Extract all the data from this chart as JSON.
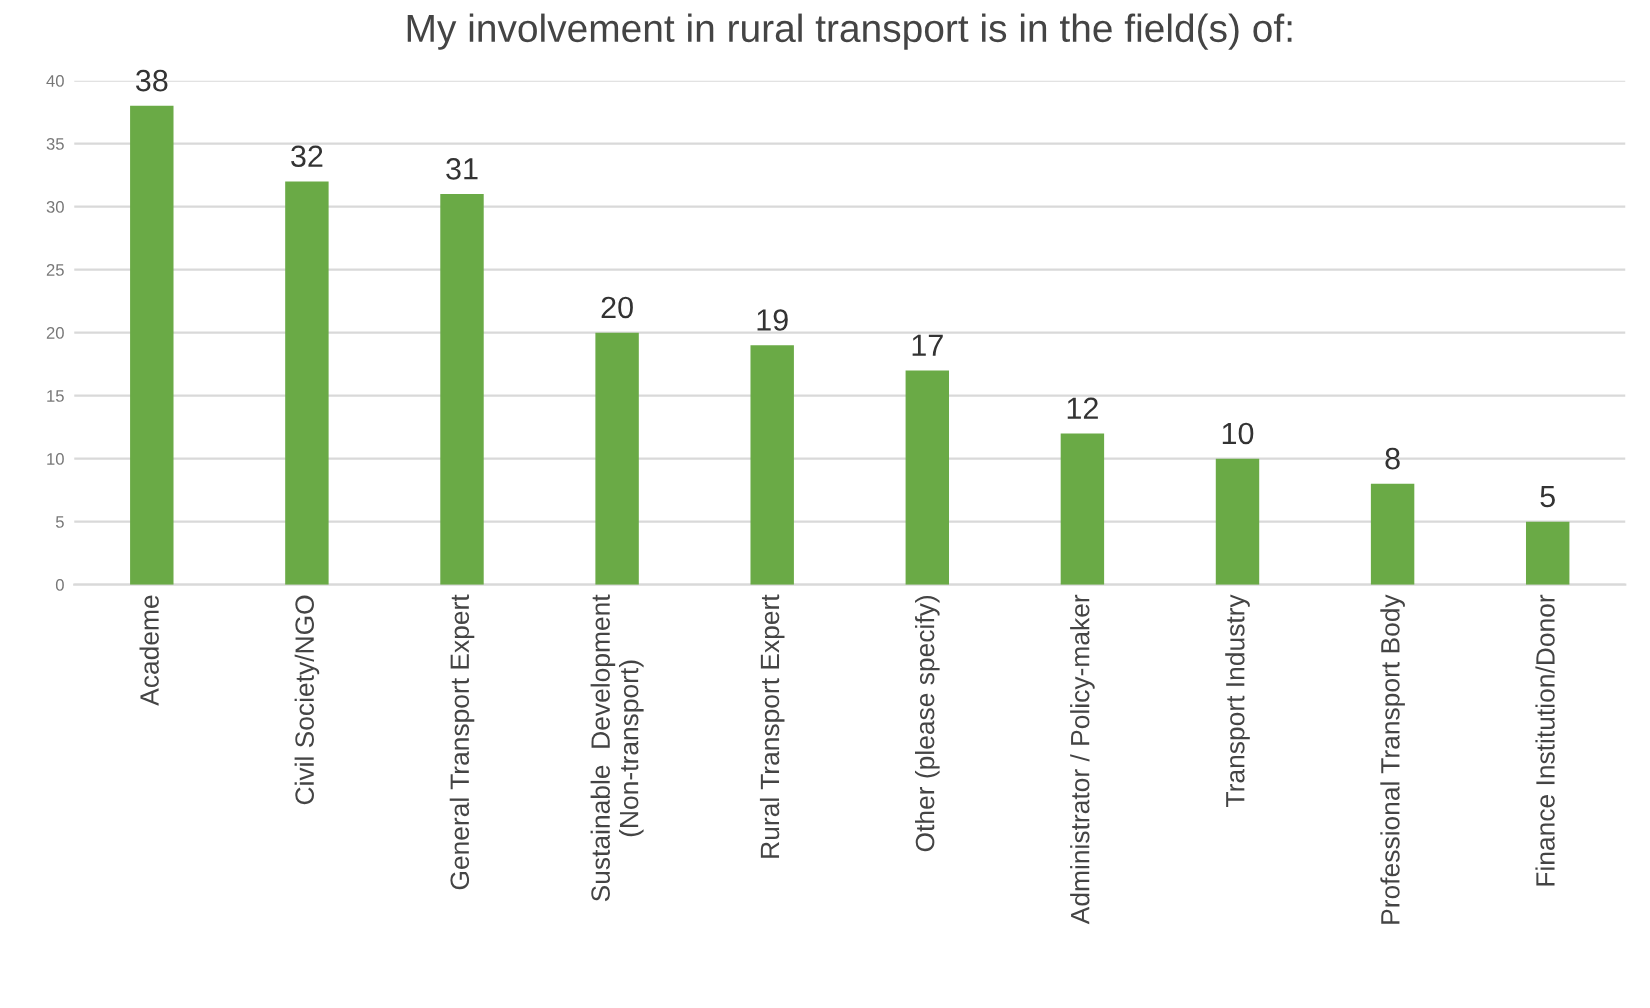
{
  "chart_data": {
    "type": "bar",
    "title": "My involvement in rural transport is in the field(s) of:",
    "categories": [
      "Academe",
      "Civil Society/NGO",
      "General Transport Expert",
      "Sustainable  Development\n(Non-transport)",
      "Rural Transport Expert",
      "Other (please specify)",
      "Administrator / Policy-maker",
      "Transport Industry",
      "Professional Transport Body",
      "Finance Institution/Donor"
    ],
    "values": [
      38,
      32,
      31,
      20,
      19,
      17,
      12,
      10,
      8,
      5
    ],
    "color": "#6aaa46",
    "ylim": [
      0,
      40
    ],
    "yticks": [
      0,
      5,
      10,
      15,
      20,
      25,
      30,
      35,
      40
    ],
    "grid": "y",
    "data_labels": true
  }
}
